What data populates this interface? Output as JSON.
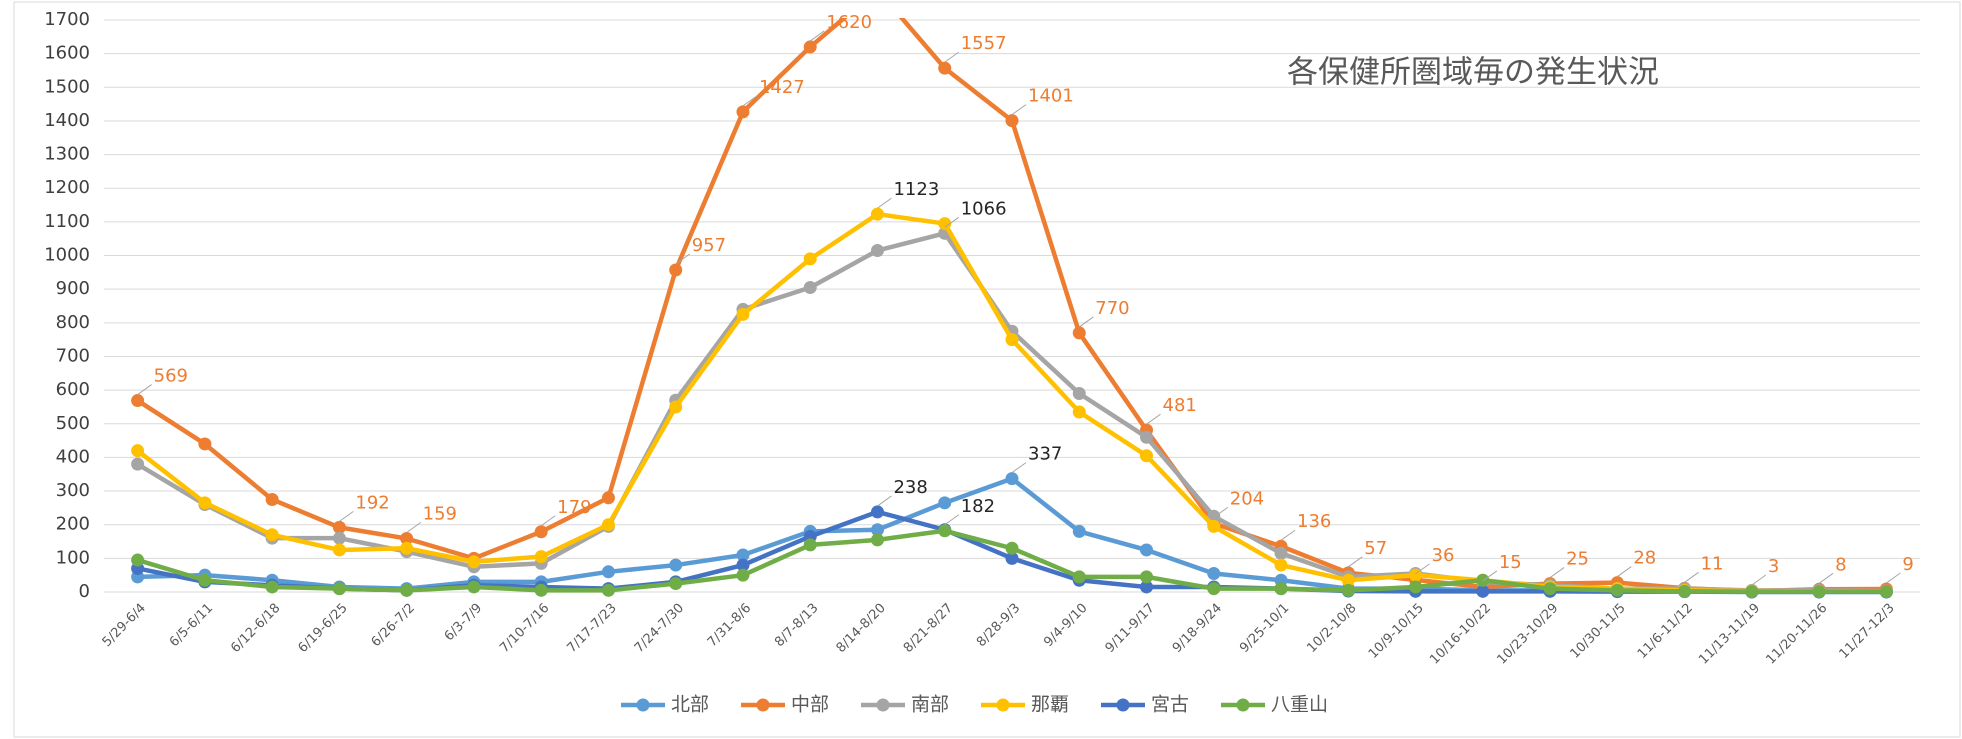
{
  "chart_data": {
    "type": "line",
    "title": "各保健所圏域毎の発生状況",
    "categories": [
      "5/29-6/4",
      "6/5-6/11",
      "6/12-6/18",
      "6/19-6/25",
      "6/26-7/2",
      "6/3-7/9",
      "7/10-7/16",
      "7/17-7/23",
      "7/24-7/30",
      "7/31-8/6",
      "8/7-8/13",
      "8/14-8/20",
      "8/21-8/27",
      "8/28-9/3",
      "9/4-9/10",
      "9/11-9/17",
      "9/18-9/24",
      "9/25-10/1",
      "10/2-10/8",
      "10/9-10/15",
      "10/16-10/22",
      "10/23-10/29",
      "10/30-11/5",
      "11/6-11/12",
      "11/13-11/19",
      "11/20-11/26",
      "11/27-12/3"
    ],
    "series": [
      {
        "name": "北部",
        "color": "#5b9bd5",
        "values": [
          45,
          50,
          35,
          15,
          10,
          30,
          30,
          60,
          80,
          110,
          180,
          185,
          265,
          337,
          180,
          125,
          55,
          35,
          10,
          10,
          5,
          5,
          3,
          2,
          1,
          1,
          1
        ],
        "value_labels": [
          null,
          null,
          null,
          null,
          null,
          null,
          null,
          null,
          null,
          null,
          null,
          null,
          null,
          "337",
          null,
          null,
          null,
          null,
          null,
          null,
          null,
          null,
          null,
          null,
          null,
          null,
          null
        ],
        "label_color": "#262626"
      },
      {
        "name": "中部",
        "color": "#ed7d31",
        "values": [
          569,
          440,
          275,
          192,
          159,
          100,
          179,
          280,
          957,
          1427,
          1620,
          1790,
          1557,
          1401,
          770,
          481,
          204,
          136,
          57,
          36,
          15,
          25,
          28,
          11,
          3,
          8,
          9
        ],
        "value_labels": [
          "569",
          null,
          null,
          "192",
          "159",
          null,
          "179",
          null,
          "957",
          "1427",
          "1620",
          null,
          "1557",
          "1401",
          "770",
          "481",
          "204",
          "136",
          "57",
          "36",
          "15",
          "25",
          "28",
          "11",
          "3",
          "8",
          "9"
        ],
        "label_color": "#ed7d31"
      },
      {
        "name": "南部",
        "color": "#a5a5a5",
        "values": [
          380,
          260,
          160,
          160,
          120,
          75,
          85,
          195,
          570,
          840,
          905,
          1015,
          1066,
          775,
          590,
          460,
          225,
          115,
          45,
          55,
          30,
          20,
          10,
          10,
          5,
          5,
          3
        ],
        "value_labels": [
          null,
          null,
          null,
          null,
          null,
          null,
          null,
          null,
          null,
          null,
          null,
          null,
          "1066",
          null,
          null,
          null,
          null,
          null,
          null,
          null,
          null,
          null,
          null,
          null,
          null,
          null,
          null
        ],
        "label_color": "#262626"
      },
      {
        "name": "那覇",
        "color": "#ffc000",
        "values": [
          420,
          265,
          170,
          125,
          130,
          90,
          105,
          200,
          550,
          825,
          990,
          1123,
          1095,
          750,
          535,
          405,
          195,
          80,
          35,
          50,
          35,
          15,
          10,
          5,
          3,
          2,
          1
        ],
        "value_labels": [
          null,
          null,
          null,
          null,
          null,
          null,
          null,
          null,
          null,
          null,
          null,
          "1123",
          null,
          null,
          null,
          null,
          null,
          null,
          null,
          null,
          null,
          null,
          null,
          null,
          null,
          null,
          null
        ],
        "label_color": "#262626"
      },
      {
        "name": "宮古",
        "color": "#4472c4",
        "values": [
          70,
          30,
          20,
          10,
          5,
          20,
          15,
          10,
          30,
          80,
          165,
          238,
          185,
          100,
          35,
          15,
          15,
          10,
          3,
          2,
          2,
          2,
          1,
          1,
          0,
          0,
          0
        ],
        "value_labels": [
          null,
          null,
          null,
          null,
          null,
          null,
          null,
          null,
          null,
          null,
          null,
          "238",
          null,
          null,
          null,
          null,
          null,
          null,
          null,
          null,
          null,
          null,
          null,
          null,
          null,
          null,
          null
        ],
        "label_color": "#262626"
      },
      {
        "name": "八重山",
        "color": "#70ad47",
        "values": [
          95,
          35,
          15,
          10,
          5,
          15,
          5,
          5,
          25,
          50,
          140,
          155,
          182,
          130,
          45,
          45,
          10,
          10,
          5,
          15,
          35,
          10,
          5,
          2,
          1,
          1,
          1
        ],
        "value_labels": [
          null,
          null,
          null,
          null,
          null,
          null,
          null,
          null,
          null,
          null,
          null,
          null,
          "182",
          null,
          null,
          null,
          null,
          null,
          null,
          null,
          null,
          null,
          null,
          null,
          null,
          null,
          null
        ],
        "label_color": "#262626"
      }
    ],
    "ylim": [
      0,
      1700
    ],
    "yticks": [
      0,
      100,
      200,
      300,
      400,
      500,
      600,
      700,
      800,
      900,
      1000,
      1100,
      1200,
      1300,
      1400,
      1500,
      1600,
      1700
    ],
    "grid": true,
    "legend": "bottom"
  }
}
